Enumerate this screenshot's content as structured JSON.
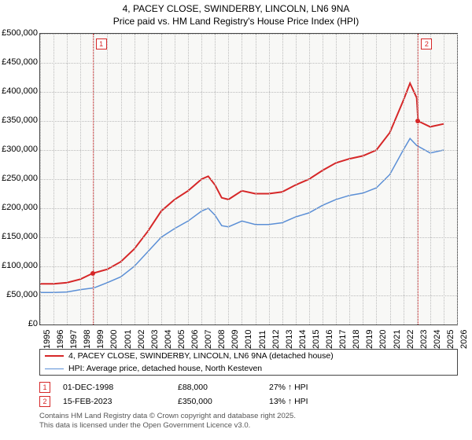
{
  "title_line1": "4, PACEY CLOSE, SWINDERBY, LINCOLN, LN6 9NA",
  "title_line2": "Price paid vs. HM Land Registry's House Price Index (HPI)",
  "chart": {
    "type": "line",
    "background_color": "#f8f8f6",
    "grid_color": "#bbbbbb",
    "border_color": "#444444",
    "ylim": [
      0,
      500000
    ],
    "ytick_step": 50000,
    "yticks": [
      "£0",
      "£50,000",
      "£100,000",
      "£150,000",
      "£200,000",
      "£250,000",
      "£300,000",
      "£350,000",
      "£400,000",
      "£450,000",
      "£500,000"
    ],
    "xlim": [
      1995,
      2026
    ],
    "xticks": [
      1995,
      1996,
      1997,
      1998,
      1999,
      2000,
      2001,
      2002,
      2003,
      2004,
      2005,
      2006,
      2007,
      2008,
      2009,
      2010,
      2011,
      2012,
      2013,
      2014,
      2015,
      2016,
      2017,
      2018,
      2019,
      2020,
      2021,
      2022,
      2023,
      2024,
      2025,
      2026
    ],
    "series": [
      {
        "name": "price_paid",
        "label": "4, PACEY CLOSE, SWINDERBY, LINCOLN, LN6 9NA (detached house)",
        "color": "#d62728",
        "line_width": 2,
        "points": [
          [
            1995,
            70000
          ],
          [
            1996,
            70000
          ],
          [
            1997,
            72000
          ],
          [
            1998,
            78000
          ],
          [
            1998.9,
            88000
          ],
          [
            2000,
            95000
          ],
          [
            2001,
            108000
          ],
          [
            2002,
            130000
          ],
          [
            2003,
            160000
          ],
          [
            2004,
            195000
          ],
          [
            2005,
            215000
          ],
          [
            2006,
            230000
          ],
          [
            2007,
            250000
          ],
          [
            2007.5,
            255000
          ],
          [
            2008,
            240000
          ],
          [
            2008.5,
            218000
          ],
          [
            2009,
            215000
          ],
          [
            2010,
            230000
          ],
          [
            2011,
            225000
          ],
          [
            2012,
            225000
          ],
          [
            2013,
            228000
          ],
          [
            2014,
            240000
          ],
          [
            2015,
            250000
          ],
          [
            2016,
            265000
          ],
          [
            2017,
            278000
          ],
          [
            2018,
            285000
          ],
          [
            2019,
            290000
          ],
          [
            2020,
            300000
          ],
          [
            2021,
            330000
          ],
          [
            2022,
            385000
          ],
          [
            2022.5,
            415000
          ],
          [
            2023,
            390000
          ],
          [
            2023.1,
            350000
          ],
          [
            2024,
            340000
          ],
          [
            2025,
            345000
          ]
        ]
      },
      {
        "name": "hpi",
        "label": "HPI: Average price, detached house, North Kesteven",
        "color": "#5b8fd6",
        "line_width": 1.5,
        "points": [
          [
            1995,
            55000
          ],
          [
            1996,
            55000
          ],
          [
            1997,
            56000
          ],
          [
            1998,
            60000
          ],
          [
            1999,
            63000
          ],
          [
            2000,
            72000
          ],
          [
            2001,
            82000
          ],
          [
            2002,
            100000
          ],
          [
            2003,
            125000
          ],
          [
            2004,
            150000
          ],
          [
            2005,
            165000
          ],
          [
            2006,
            178000
          ],
          [
            2007,
            195000
          ],
          [
            2007.5,
            200000
          ],
          [
            2008,
            188000
          ],
          [
            2008.5,
            170000
          ],
          [
            2009,
            168000
          ],
          [
            2010,
            178000
          ],
          [
            2011,
            172000
          ],
          [
            2012,
            172000
          ],
          [
            2013,
            175000
          ],
          [
            2014,
            185000
          ],
          [
            2015,
            192000
          ],
          [
            2016,
            205000
          ],
          [
            2017,
            215000
          ],
          [
            2018,
            222000
          ],
          [
            2019,
            226000
          ],
          [
            2020,
            235000
          ],
          [
            2021,
            258000
          ],
          [
            2022,
            300000
          ],
          [
            2022.5,
            320000
          ],
          [
            2023,
            308000
          ],
          [
            2024,
            295000
          ],
          [
            2025,
            300000
          ]
        ]
      }
    ],
    "markers": [
      {
        "n": "1",
        "year": 1998.9,
        "value": 88000
      },
      {
        "n": "2",
        "year": 2023.1,
        "value": 350000
      }
    ]
  },
  "legend": {
    "items": [
      {
        "color": "#d62728",
        "width": 2,
        "label": "4, PACEY CLOSE, SWINDERBY, LINCOLN, LN6 9NA (detached house)"
      },
      {
        "color": "#5b8fd6",
        "width": 1.5,
        "label": "HPI: Average price, detached house, North Kesteven"
      }
    ]
  },
  "transactions": [
    {
      "n": "1",
      "date": "01-DEC-1998",
      "price": "£88,000",
      "hpi": "27% ↑ HPI"
    },
    {
      "n": "2",
      "date": "15-FEB-2023",
      "price": "£350,000",
      "hpi": "13% ↑ HPI"
    }
  ],
  "attribution_line1": "Contains HM Land Registry data © Crown copyright and database right 2025.",
  "attribution_line2": "This data is licensed under the Open Government Licence v3.0."
}
